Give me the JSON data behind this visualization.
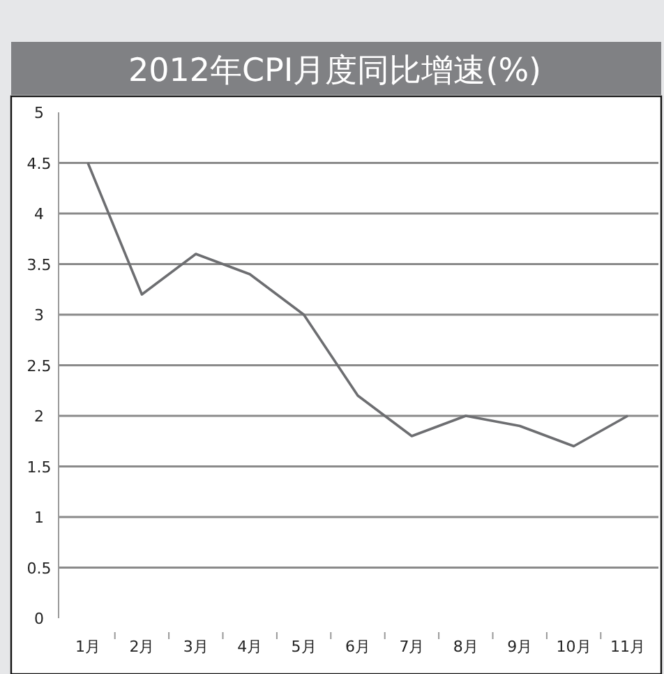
{
  "chart_data": {
    "type": "line",
    "title": "2012年CPI月度同比增速(%)",
    "categories": [
      "1月",
      "2月",
      "3月",
      "4月",
      "5月",
      "6月",
      "7月",
      "8月",
      "9月",
      "10月",
      "11月"
    ],
    "series": [
      {
        "color": "#6d6e71",
        "values": [
          4.5,
          3.2,
          3.6,
          3.4,
          3.0,
          2.2,
          1.8,
          2.0,
          1.9,
          1.7,
          2.0
        ]
      }
    ],
    "ylim": [
      0,
      5
    ],
    "yticks": [
      0,
      0.5,
      1,
      1.5,
      2,
      2.5,
      3,
      3.5,
      4,
      4.5,
      5
    ],
    "grid": "y",
    "marker": "none",
    "line_style": "solid"
  }
}
